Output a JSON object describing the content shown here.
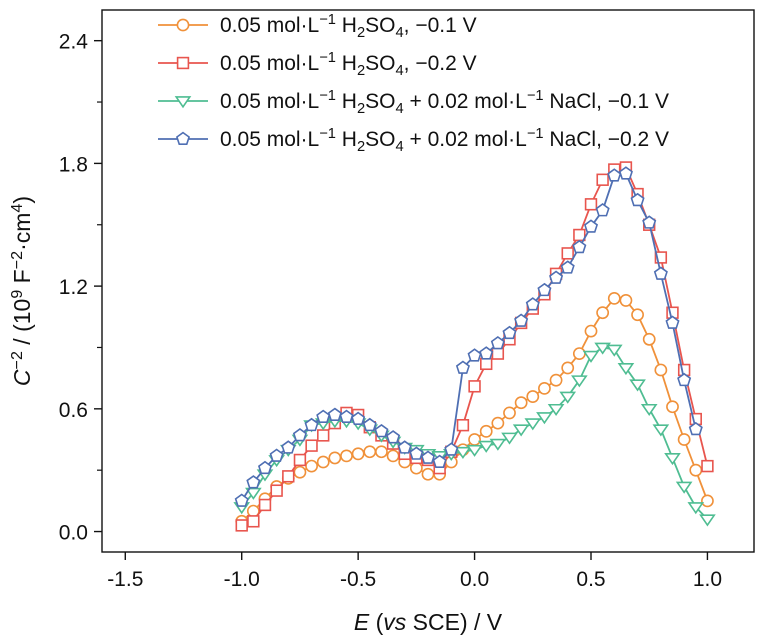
{
  "chart_data": {
    "type": "line",
    "title": "",
    "xlabel": {
      "parts": [
        {
          "text": "E",
          "style": "italic"
        },
        {
          "text": " (",
          "style": "normal"
        },
        {
          "text": "vs",
          "style": "italic"
        },
        {
          "text": " SCE) / V",
          "style": "normal"
        }
      ]
    },
    "ylabel": {
      "parts": [
        {
          "text": "C",
          "style": "italic"
        },
        {
          "text": "−2",
          "style": "sup"
        },
        {
          "text": " / (10",
          "style": "normal"
        },
        {
          "text": "9",
          "style": "sup"
        },
        {
          "text": " F",
          "style": "normal"
        },
        {
          "text": "−2",
          "style": "sup"
        },
        {
          "text": "·cm",
          "style": "normal"
        },
        {
          "text": "4",
          "style": "sup"
        },
        {
          "text": ")",
          "style": "normal"
        }
      ]
    },
    "xlim": [
      -1.6,
      1.2
    ],
    "ylim": [
      -0.1,
      2.55
    ],
    "xticks": [
      -1.5,
      -1.0,
      -0.5,
      0.0,
      0.5,
      1.0
    ],
    "xtick_labels": [
      "-1.5",
      "-1.0",
      "-0.5",
      "0.0",
      "0.5",
      "1.0"
    ],
    "yticks": [
      0.0,
      0.6,
      1.2,
      1.8,
      2.4
    ],
    "ytick_labels": [
      "0.0",
      "0.6",
      "1.2",
      "1.8",
      "2.4"
    ],
    "yminor": [
      0.3,
      0.9,
      1.5,
      2.1
    ],
    "grid": false,
    "legend_position": "top-center",
    "series": [
      {
        "name": [
          {
            "t": "0.05 mol·L"
          },
          {
            "t": "−1",
            "s": "sup"
          },
          {
            "t": " H"
          },
          {
            "t": "2",
            "s": "sub"
          },
          {
            "t": "SO"
          },
          {
            "t": "4",
            "s": "sub"
          },
          {
            "t": ", −0.1 V"
          }
        ],
        "color": "#f0913a",
        "marker": "circle",
        "x": [
          -1.0,
          -0.95,
          -0.9,
          -0.85,
          -0.8,
          -0.75,
          -0.7,
          -0.65,
          -0.6,
          -0.55,
          -0.5,
          -0.45,
          -0.4,
          -0.35,
          -0.3,
          -0.25,
          -0.2,
          -0.15,
          -0.1,
          -0.05,
          0.0,
          0.05,
          0.1,
          0.15,
          0.2,
          0.25,
          0.3,
          0.35,
          0.4,
          0.45,
          0.5,
          0.55,
          0.6,
          0.65,
          0.7,
          0.75,
          0.8,
          0.85,
          0.9,
          0.95,
          1.0
        ],
        "y": [
          0.05,
          0.1,
          0.16,
          0.22,
          0.26,
          0.29,
          0.32,
          0.34,
          0.36,
          0.37,
          0.38,
          0.39,
          0.39,
          0.37,
          0.34,
          0.31,
          0.28,
          0.28,
          0.34,
          0.4,
          0.45,
          0.49,
          0.53,
          0.58,
          0.63,
          0.66,
          0.7,
          0.74,
          0.8,
          0.87,
          0.98,
          1.07,
          1.14,
          1.13,
          1.06,
          0.94,
          0.79,
          0.61,
          0.45,
          0.3,
          0.15
        ]
      },
      {
        "name": [
          {
            "t": "0.05 mol·L"
          },
          {
            "t": "−1",
            "s": "sup"
          },
          {
            "t": " H"
          },
          {
            "t": "2",
            "s": "sub"
          },
          {
            "t": "SO"
          },
          {
            "t": "4",
            "s": "sub"
          },
          {
            "t": ", −0.2 V"
          }
        ],
        "color": "#e8554e",
        "marker": "square",
        "x": [
          -1.0,
          -0.95,
          -0.9,
          -0.85,
          -0.8,
          -0.75,
          -0.7,
          -0.65,
          -0.6,
          -0.55,
          -0.5,
          -0.45,
          -0.4,
          -0.35,
          -0.3,
          -0.25,
          -0.2,
          -0.15,
          -0.1,
          -0.05,
          0.0,
          0.05,
          0.1,
          0.15,
          0.2,
          0.25,
          0.3,
          0.35,
          0.4,
          0.45,
          0.5,
          0.55,
          0.6,
          0.65,
          0.7,
          0.75,
          0.8,
          0.85,
          0.9,
          0.95,
          1.0
        ],
        "y": [
          0.03,
          0.05,
          0.13,
          0.2,
          0.27,
          0.35,
          0.42,
          0.47,
          0.53,
          0.58,
          0.57,
          0.51,
          0.47,
          0.43,
          0.38,
          0.36,
          0.35,
          0.31,
          0.39,
          0.52,
          0.71,
          0.82,
          0.87,
          0.94,
          1.02,
          1.09,
          1.16,
          1.26,
          1.36,
          1.45,
          1.6,
          1.72,
          1.77,
          1.78,
          1.65,
          1.5,
          1.34,
          1.07,
          0.79,
          0.55,
          0.32
        ]
      },
      {
        "name": [
          {
            "t": "0.05 mol·L"
          },
          {
            "t": "−1",
            "s": "sup"
          },
          {
            "t": " H"
          },
          {
            "t": "2",
            "s": "sub"
          },
          {
            "t": "SO"
          },
          {
            "t": "4",
            "s": "sub"
          },
          {
            "t": " + 0.02 mol·L"
          },
          {
            "t": "−1",
            "s": "sup"
          },
          {
            "t": " NaCl, −0.1 V"
          }
        ],
        "color": "#4fbd92",
        "marker": "triangle-down",
        "x": [
          -1.0,
          -0.95,
          -0.9,
          -0.85,
          -0.8,
          -0.75,
          -0.7,
          -0.65,
          -0.6,
          -0.55,
          -0.5,
          -0.45,
          -0.4,
          -0.35,
          -0.3,
          -0.25,
          -0.2,
          -0.15,
          -0.1,
          -0.05,
          0.0,
          0.05,
          0.1,
          0.15,
          0.2,
          0.25,
          0.3,
          0.35,
          0.4,
          0.45,
          0.5,
          0.55,
          0.6,
          0.65,
          0.7,
          0.75,
          0.8,
          0.85,
          0.9,
          0.95,
          1.0
        ],
        "y": [
          0.12,
          0.19,
          0.28,
          0.35,
          0.4,
          0.45,
          0.52,
          0.53,
          0.54,
          0.54,
          0.53,
          0.5,
          0.47,
          0.44,
          0.41,
          0.4,
          0.38,
          0.37,
          0.38,
          0.39,
          0.4,
          0.42,
          0.43,
          0.46,
          0.5,
          0.53,
          0.56,
          0.6,
          0.66,
          0.74,
          0.86,
          0.9,
          0.89,
          0.8,
          0.72,
          0.6,
          0.5,
          0.36,
          0.22,
          0.12,
          0.06
        ]
      },
      {
        "name": [
          {
            "t": "0.05 mol·L"
          },
          {
            "t": "−1",
            "s": "sup"
          },
          {
            "t": " H"
          },
          {
            "t": "2",
            "s": "sub"
          },
          {
            "t": "SO"
          },
          {
            "t": "4",
            "s": "sub"
          },
          {
            "t": " + 0.02 mol·L"
          },
          {
            "t": "−1",
            "s": "sup"
          },
          {
            "t": " NaCl, −0.2 V"
          }
        ],
        "color": "#4f6fb3",
        "marker": "pentagon",
        "x": [
          -1.0,
          -0.95,
          -0.9,
          -0.85,
          -0.8,
          -0.75,
          -0.7,
          -0.65,
          -0.6,
          -0.55,
          -0.5,
          -0.45,
          -0.4,
          -0.35,
          -0.3,
          -0.25,
          -0.2,
          -0.15,
          -0.1,
          -0.05,
          0.0,
          0.05,
          0.1,
          0.15,
          0.2,
          0.25,
          0.3,
          0.35,
          0.4,
          0.45,
          0.5,
          0.55,
          0.6,
          0.65,
          0.7,
          0.75,
          0.8,
          0.85,
          0.9,
          0.95
        ],
        "y": [
          0.15,
          0.24,
          0.31,
          0.37,
          0.41,
          0.47,
          0.52,
          0.56,
          0.57,
          0.56,
          0.55,
          0.52,
          0.49,
          0.46,
          0.41,
          0.38,
          0.36,
          0.34,
          0.4,
          0.8,
          0.86,
          0.87,
          0.92,
          0.97,
          1.03,
          1.11,
          1.18,
          1.24,
          1.29,
          1.39,
          1.49,
          1.57,
          1.74,
          1.75,
          1.62,
          1.51,
          1.26,
          1.02,
          0.74,
          0.5
        ]
      }
    ]
  }
}
